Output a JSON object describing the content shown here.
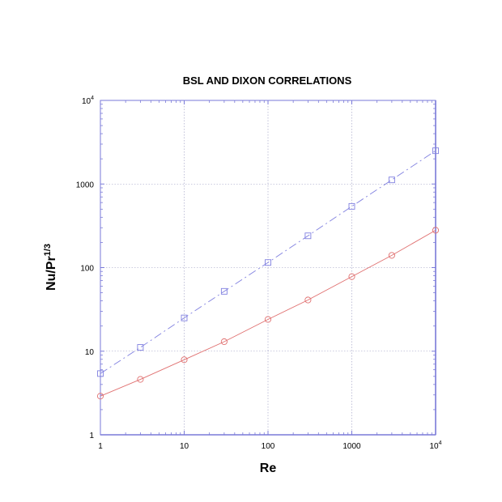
{
  "chart_data": {
    "type": "line",
    "title": "BSL AND DIXON CORRELATIONS",
    "xlabel": "Re",
    "ylabel": {
      "base": "Nu/Pr",
      "exponent": "1/3"
    },
    "x_scale": "log",
    "y_scale": "log",
    "xlim": [
      1,
      10000
    ],
    "ylim": [
      1,
      10000
    ],
    "grid": true,
    "x_ticks": [
      {
        "value": 1,
        "label": "1",
        "exponent": ""
      },
      {
        "value": 10,
        "label": "10",
        "exponent": ""
      },
      {
        "value": 100,
        "label": "100",
        "exponent": ""
      },
      {
        "value": 1000,
        "label": "1000",
        "exponent": ""
      },
      {
        "value": 10000,
        "label": "10",
        "exponent": "4"
      }
    ],
    "y_ticks": [
      {
        "value": 1,
        "label": "1",
        "exponent": ""
      },
      {
        "value": 10,
        "label": "10",
        "exponent": ""
      },
      {
        "value": 100,
        "label": "100",
        "exponent": ""
      },
      {
        "value": 1000,
        "label": "1000",
        "exponent": ""
      },
      {
        "value": 10000,
        "label": "10",
        "exponent": "4"
      }
    ],
    "series": [
      {
        "color": "#8080e0",
        "line_style": "dashed",
        "marker": "square",
        "x": [
          1,
          3,
          10,
          30,
          100,
          300,
          1000,
          3000,
          10000
        ],
        "y": [
          5.4,
          11.1,
          25,
          52,
          115,
          240,
          540,
          1120,
          2500
        ]
      },
      {
        "color": "#e07070",
        "line_style": "solid",
        "marker": "circle",
        "x": [
          1,
          3,
          10,
          30,
          100,
          300,
          1000,
          3000,
          10000
        ],
        "y": [
          2.9,
          4.6,
          7.9,
          13,
          24,
          41,
          78,
          140,
          280
        ]
      }
    ]
  }
}
